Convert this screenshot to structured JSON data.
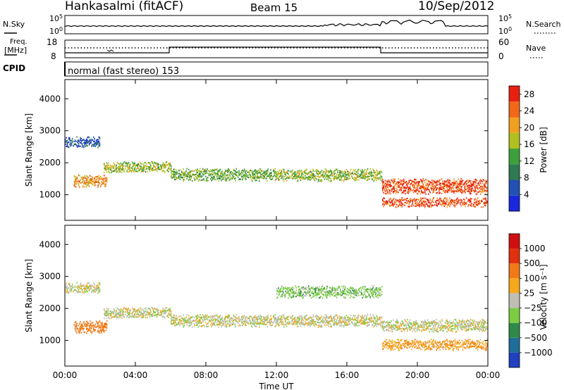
{
  "header": {
    "station": "Hankasalmi (fitACF)",
    "beam": "Beam 15",
    "date": "10/Sep/2012"
  },
  "noise_panel": {
    "left_label": "N.Sky",
    "right_label": "N.Search",
    "left_ticks": [
      "10^5",
      "10^0"
    ],
    "right_ticks": [
      "10^5",
      "10^0"
    ]
  },
  "freq_panel": {
    "left_label_1": "Freq.",
    "left_label_2": "[MHz]",
    "right_label": "Nave",
    "left_ticks": [
      "18",
      "8"
    ],
    "right_ticks": [
      "60",
      "0"
    ]
  },
  "cpid_panel": {
    "label": "CPID",
    "mode_text": "normal (fast stereo) 153"
  },
  "colors": {
    "axis": "#000000",
    "background": "#ffffff",
    "ground_scatter": "#bebeb4"
  },
  "chart_data": [
    {
      "type": "heatmap",
      "name_ref": "power-panel",
      "ylabel": "Slant Range [km]",
      "xlabel": "",
      "xlim": [
        0,
        24
      ],
      "ylim": [
        200,
        4600
      ],
      "x_tick_labels": [
        "00:00",
        "04:00",
        "08:00",
        "12:00",
        "16:00",
        "20:00",
        "00:00"
      ],
      "x_ticks": [
        0,
        4,
        8,
        12,
        16,
        20,
        24
      ],
      "y_tick_labels": [
        "1000",
        "2000",
        "3000",
        "4000"
      ],
      "y_ticks": [
        1000,
        2000,
        3000,
        4000
      ],
      "colorbar": {
        "label": "Power [dB]",
        "ticks": [
          "4",
          "8",
          "12",
          "16",
          "20",
          "24",
          "28"
        ],
        "range": [
          0,
          30
        ],
        "colors": [
          "#1a28dc",
          "#2250b4",
          "#2f7a50",
          "#3ea03c",
          "#b0c020",
          "#f0a020",
          "#f06818",
          "#e82010"
        ]
      },
      "bands": [
        {
          "x": [
            0.0,
            2.0
          ],
          "center_km": 2680,
          "width_km": 260,
          "value_db": 6
        },
        {
          "x": [
            2.2,
            6.0
          ],
          "center_km": 1900,
          "width_km": 260,
          "value_db": 16
        },
        {
          "x": [
            6.0,
            12.0
          ],
          "center_km": 1650,
          "width_km": 280,
          "value_db": 14
        },
        {
          "x": [
            12.0,
            18.0
          ],
          "center_km": 1650,
          "width_km": 300,
          "value_db": 16
        },
        {
          "x": [
            18.0,
            24.0
          ],
          "center_km": 1300,
          "width_km": 400,
          "value_db": 26
        },
        {
          "x": [
            18.0,
            24.0
          ],
          "center_km": 800,
          "width_km": 220,
          "value_db": 26
        },
        {
          "x": [
            0.5,
            2.4
          ],
          "center_km": 1450,
          "width_km": 280,
          "value_db": 22
        }
      ]
    },
    {
      "type": "heatmap",
      "name_ref": "velocity-panel",
      "ylabel": "Slant Range [km]",
      "xlabel": "Time UT",
      "xlim": [
        0,
        24
      ],
      "ylim": [
        200,
        4600
      ],
      "x_tick_labels": [
        "00:00",
        "04:00",
        "08:00",
        "12:00",
        "16:00",
        "20:00",
        "00:00"
      ],
      "x_ticks": [
        0,
        4,
        8,
        12,
        16,
        20,
        24
      ],
      "y_tick_labels": [
        "1000",
        "2000",
        "3000",
        "4000"
      ],
      "y_ticks": [
        1000,
        2000,
        3000,
        4000
      ],
      "colorbar": {
        "label": "Velocity [m s⁻¹]",
        "ticks": [
          "1000",
          "500",
          "100",
          "25",
          "−25",
          "−100",
          "−500",
          "−1000"
        ],
        "colors": [
          "#2040c0",
          "#1f6e9a",
          "#2f8a4a",
          "#7ccc44",
          "#bebeb4",
          "#f5a81c",
          "#f07a18",
          "#e0300e",
          "#d01010"
        ]
      },
      "bands": [
        {
          "x": [
            0.0,
            2.0
          ],
          "center_km": 2680,
          "width_km": 260,
          "value_ms": 0
        },
        {
          "x": [
            2.2,
            6.0
          ],
          "center_km": 1900,
          "width_km": 260,
          "value_ms": 0
        },
        {
          "x": [
            6.0,
            18.0
          ],
          "center_km": 1650,
          "width_km": 300,
          "value_ms": 0
        },
        {
          "x": [
            18.0,
            24.0
          ],
          "center_km": 1500,
          "width_km": 300,
          "value_ms": 0
        },
        {
          "x": [
            18.0,
            24.0
          ],
          "center_km": 900,
          "width_km": 250,
          "value_ms": -80
        },
        {
          "x": [
            0.5,
            2.4
          ],
          "center_km": 1450,
          "width_km": 280,
          "value_ms": -300
        },
        {
          "x": [
            12.0,
            18.0
          ],
          "center_km": 2550,
          "width_km": 300,
          "value_ms": 60
        }
      ]
    }
  ]
}
